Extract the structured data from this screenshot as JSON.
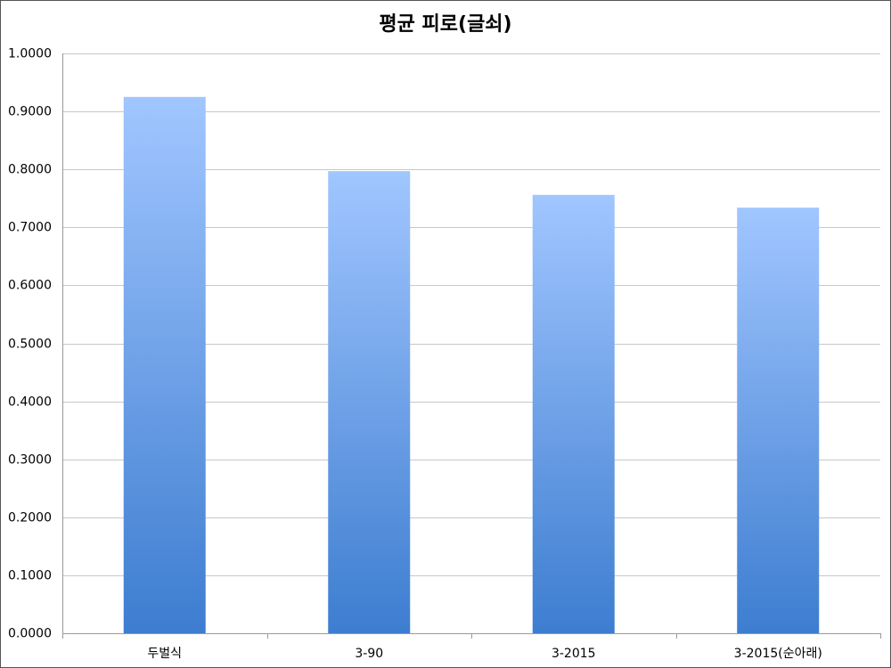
{
  "chart_data": {
    "type": "bar",
    "title": "평균 피로(글쇠)",
    "categories": [
      "두벌식",
      "3-90",
      "3-2015",
      "3-2015(순아래)"
    ],
    "values": [
      0.925,
      0.797,
      0.756,
      0.734
    ],
    "gradient": [
      "#a1c6ff",
      "#3d7dd0"
    ],
    "ylim": [
      0,
      1
    ],
    "yticks": [
      {
        "value": 0,
        "label": "0.0000"
      },
      {
        "value": 0.1,
        "label": "0.1000"
      },
      {
        "value": 0.2,
        "label": "0.2000"
      },
      {
        "value": 0.3,
        "label": "0.3000"
      },
      {
        "value": 0.4,
        "label": "0.4000"
      },
      {
        "value": 0.5,
        "label": "0.5000"
      },
      {
        "value": 0.6,
        "label": "0.6000"
      },
      {
        "value": 0.7,
        "label": "0.7000"
      },
      {
        "value": 0.8,
        "label": "0.8000"
      },
      {
        "value": 0.9,
        "label": "0.9000"
      },
      {
        "value": 1,
        "label": "1.0000"
      }
    ],
    "grid": true
  }
}
